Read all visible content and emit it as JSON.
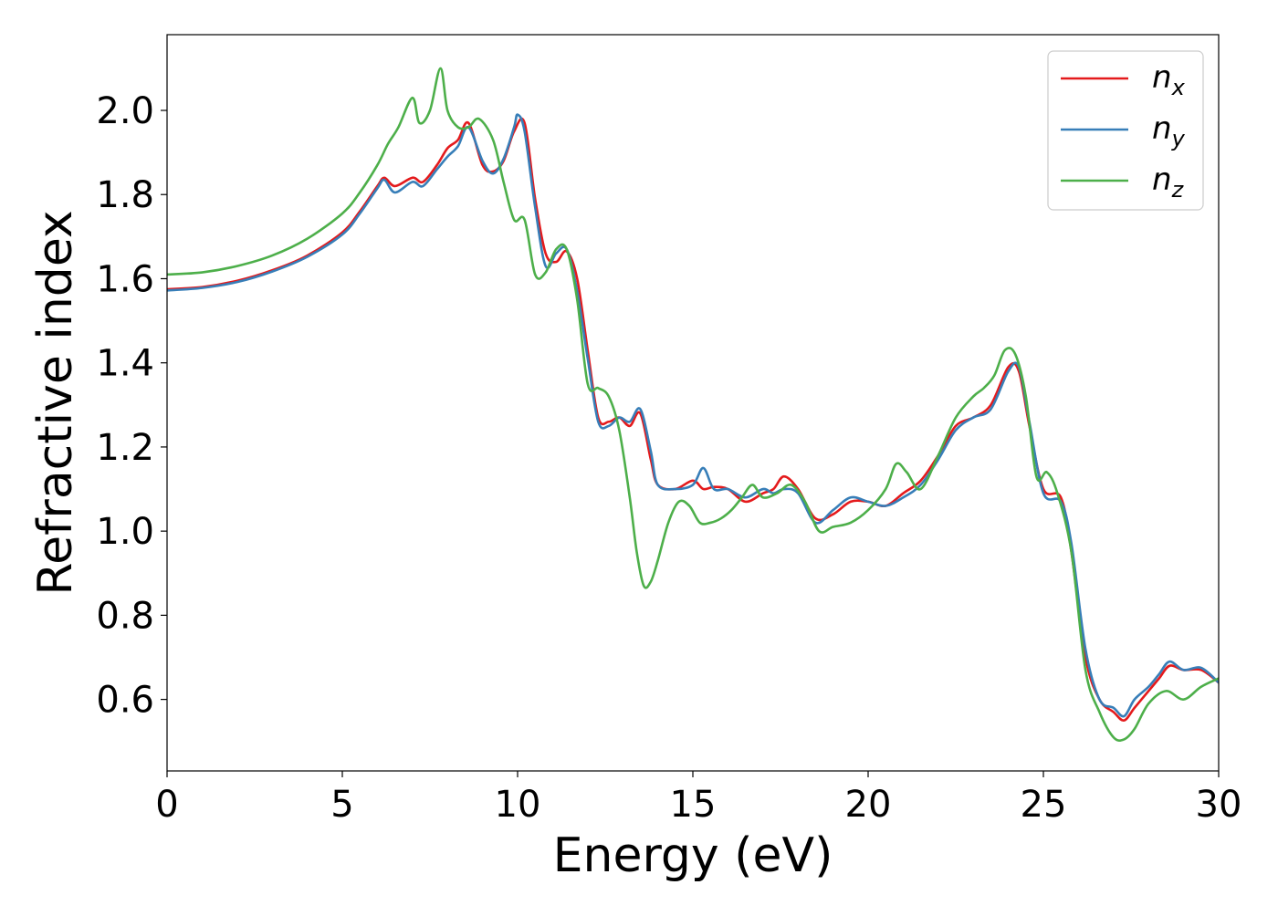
{
  "chart_data": {
    "type": "line",
    "title": "",
    "xlabel": "Energy (eV)",
    "ylabel": "Refractive index",
    "xlim": [
      0,
      30
    ],
    "ylim": [
      0.43,
      2.18
    ],
    "xticks": [
      "0",
      "5",
      "10",
      "15",
      "20",
      "25",
      "30"
    ],
    "yticks": [
      "0.6",
      "0.8",
      "1.0",
      "1.2",
      "1.4",
      "1.6",
      "1.8",
      "2.0"
    ],
    "grid": false,
    "legend_position": "top-right",
    "series": [
      {
        "name": "n",
        "subscript": "x",
        "color": "#e41a1c",
        "x": [
          0,
          1,
          2,
          3,
          4,
          5,
          5.5,
          6,
          6.2,
          6.5,
          7,
          7.3,
          7.7,
          8,
          8.3,
          8.6,
          9,
          9.3,
          9.6,
          9.9,
          10.2,
          10.5,
          10.8,
          11.1,
          11.4,
          11.7,
          12,
          12.3,
          12.6,
          12.9,
          13.2,
          13.5,
          13.8,
          14,
          14.5,
          15,
          15.3,
          15.6,
          16,
          16.5,
          17,
          17.3,
          17.6,
          18,
          18.5,
          19,
          19.5,
          20,
          20.5,
          21,
          21.5,
          22,
          22.5,
          23,
          23.5,
          24,
          24.3,
          24.6,
          25,
          25.5,
          25.8,
          26.2,
          26.6,
          27,
          27.3,
          27.6,
          28,
          28.3,
          28.6,
          29,
          29.5,
          30
        ],
        "y": [
          1.575,
          1.58,
          1.595,
          1.62,
          1.655,
          1.71,
          1.76,
          1.82,
          1.84,
          1.82,
          1.84,
          1.83,
          1.87,
          1.91,
          1.93,
          1.97,
          1.87,
          1.855,
          1.88,
          1.95,
          1.97,
          1.79,
          1.66,
          1.64,
          1.665,
          1.6,
          1.43,
          1.27,
          1.26,
          1.27,
          1.25,
          1.28,
          1.17,
          1.11,
          1.1,
          1.12,
          1.1,
          1.105,
          1.1,
          1.07,
          1.09,
          1.1,
          1.13,
          1.1,
          1.03,
          1.04,
          1.07,
          1.07,
          1.06,
          1.09,
          1.12,
          1.18,
          1.25,
          1.27,
          1.3,
          1.39,
          1.38,
          1.25,
          1.1,
          1.08,
          0.95,
          0.7,
          0.6,
          0.57,
          0.55,
          0.58,
          0.62,
          0.65,
          0.68,
          0.67,
          0.67,
          0.64
        ]
      },
      {
        "name": "n",
        "subscript": "y",
        "color": "#377eb8",
        "x": [
          0,
          1,
          2,
          3,
          4,
          5,
          5.5,
          6,
          6.2,
          6.5,
          7,
          7.3,
          7.7,
          8,
          8.3,
          8.6,
          9,
          9.3,
          9.6,
          9.9,
          10,
          10.2,
          10.5,
          10.8,
          11.1,
          11.4,
          11.7,
          12,
          12.3,
          12.6,
          12.9,
          13.2,
          13.5,
          13.8,
          14,
          14.5,
          15,
          15.3,
          15.6,
          16,
          16.5,
          17,
          17.3,
          17.6,
          18,
          18.5,
          19,
          19.5,
          20,
          20.5,
          21,
          21.5,
          22,
          22.5,
          23,
          23.5,
          24,
          24.3,
          24.6,
          25,
          25.5,
          25.8,
          26.2,
          26.6,
          27,
          27.3,
          27.6,
          28,
          28.3,
          28.6,
          29,
          29.5,
          30
        ],
        "y": [
          1.572,
          1.578,
          1.592,
          1.617,
          1.652,
          1.705,
          1.755,
          1.815,
          1.835,
          1.805,
          1.83,
          1.82,
          1.86,
          1.89,
          1.915,
          1.96,
          1.88,
          1.85,
          1.885,
          1.96,
          1.99,
          1.95,
          1.77,
          1.63,
          1.66,
          1.67,
          1.57,
          1.41,
          1.26,
          1.25,
          1.27,
          1.26,
          1.29,
          1.19,
          1.11,
          1.1,
          1.11,
          1.15,
          1.1,
          1.1,
          1.08,
          1.1,
          1.09,
          1.1,
          1.09,
          1.02,
          1.05,
          1.08,
          1.07,
          1.06,
          1.08,
          1.11,
          1.17,
          1.24,
          1.27,
          1.29,
          1.38,
          1.39,
          1.26,
          1.09,
          1.07,
          0.97,
          0.72,
          0.6,
          0.58,
          0.56,
          0.6,
          0.63,
          0.66,
          0.69,
          0.67,
          0.675,
          0.64
        ]
      },
      {
        "name": "n",
        "subscript": "z",
        "color": "#4daf4a",
        "x": [
          0,
          1,
          2,
          3,
          4,
          5,
          5.5,
          6,
          6.3,
          6.6,
          7,
          7.2,
          7.5,
          7.8,
          8,
          8.3,
          8.6,
          8.9,
          9.3,
          9.6,
          9.9,
          10.2,
          10.5,
          10.8,
          11.1,
          11.4,
          11.7,
          12,
          12.3,
          12.6,
          12.9,
          13.2,
          13.4,
          13.6,
          13.8,
          14,
          14.3,
          14.6,
          14.9,
          15.2,
          15.5,
          15.8,
          16.1,
          16.4,
          16.7,
          17,
          17.4,
          17.8,
          18.2,
          18.6,
          19,
          19.5,
          20,
          20.5,
          20.8,
          21.1,
          21.5,
          22,
          22.5,
          23,
          23.3,
          23.6,
          23.9,
          24.2,
          24.5,
          24.8,
          25.1,
          25.4,
          25.8,
          26.2,
          26.6,
          27,
          27.3,
          27.6,
          28,
          28.5,
          29,
          29.5,
          30
        ],
        "y": [
          1.61,
          1.615,
          1.63,
          1.655,
          1.695,
          1.755,
          1.805,
          1.87,
          1.92,
          1.96,
          2.03,
          1.97,
          2.0,
          2.1,
          2.0,
          1.96,
          1.96,
          1.98,
          1.93,
          1.83,
          1.74,
          1.74,
          1.61,
          1.615,
          1.67,
          1.67,
          1.55,
          1.35,
          1.34,
          1.32,
          1.24,
          1.08,
          0.95,
          0.87,
          0.88,
          0.93,
          1.02,
          1.07,
          1.06,
          1.02,
          1.02,
          1.03,
          1.05,
          1.08,
          1.11,
          1.08,
          1.09,
          1.11,
          1.07,
          1.0,
          1.01,
          1.02,
          1.05,
          1.1,
          1.16,
          1.14,
          1.1,
          1.18,
          1.27,
          1.32,
          1.34,
          1.37,
          1.43,
          1.42,
          1.32,
          1.13,
          1.14,
          1.09,
          0.95,
          0.67,
          0.57,
          0.51,
          0.505,
          0.53,
          0.59,
          0.62,
          0.6,
          0.63,
          0.65
        ]
      }
    ]
  }
}
